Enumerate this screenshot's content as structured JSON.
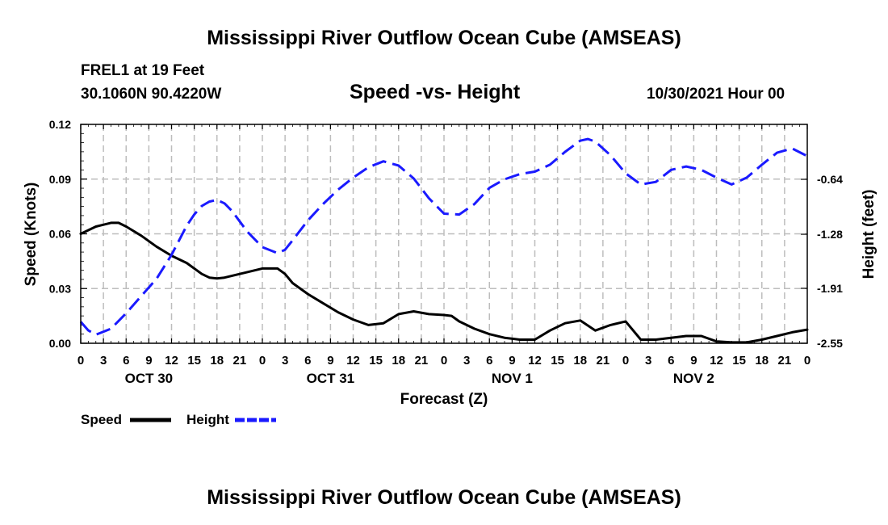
{
  "header": {
    "title": "Mississippi River Outflow Ocean Cube (AMSEAS)",
    "station": "FREL1 at 19 Feet",
    "coords": "30.1060N  90.4220W",
    "subtitle": "Speed -vs- Height",
    "datetime": "10/30/2021 Hour 00"
  },
  "footer": {
    "title": "Mississippi River Outflow Ocean Cube (AMSEAS)"
  },
  "colors": {
    "speed": "#000000",
    "height": "#1a1aff",
    "grid": "#bdbdbd"
  },
  "chart_data": {
    "type": "line",
    "title": "Speed -vs- Height",
    "xlabel": "Forecast (Z)",
    "ylabel": "Speed (Knots)",
    "y2label": "Height (feet)",
    "xlim": [
      0,
      96
    ],
    "ylim": [
      0,
      0.12
    ],
    "y2lim": [
      -2.55,
      0.0
    ],
    "x_tick_labels": [
      "0",
      "3",
      "6",
      "9",
      "12",
      "15",
      "18",
      "21",
      "0",
      "3",
      "6",
      "9",
      "12",
      "15",
      "18",
      "21",
      "0",
      "3",
      "6",
      "9",
      "12",
      "15",
      "18",
      "21",
      "0",
      "3",
      "6",
      "9",
      "12",
      "15",
      "18",
      "21",
      "0"
    ],
    "y_ticks": [
      0.0,
      0.03,
      0.06,
      0.09,
      0.12
    ],
    "y_tick_labels": [
      "0.00",
      "0.03",
      "0.06",
      "0.09",
      "0.12"
    ],
    "y2_ticks": [
      -2.55,
      -1.91,
      -1.28,
      -0.64
    ],
    "y2_tick_labels": [
      "-2.55",
      "-1.91",
      "-1.28",
      "-0.64"
    ],
    "date_labels": [
      {
        "label": "OCT 30",
        "x": 9
      },
      {
        "label": "OCT 31",
        "x": 33
      },
      {
        "label": "NOV 1",
        "x": 57
      },
      {
        "label": "NOV 2",
        "x": 81
      }
    ],
    "legend": [
      {
        "name": "Speed",
        "style": "solid"
      },
      {
        "name": "Height",
        "style": "dashed"
      }
    ],
    "series": [
      {
        "name": "Speed",
        "axis": "left",
        "style": "solid",
        "x": [
          0,
          2,
          4,
          5,
          6,
          8,
          10,
          12,
          14,
          16,
          17,
          18,
          19,
          20,
          22,
          24,
          26,
          27,
          28,
          30,
          32,
          34,
          36,
          38,
          40,
          42,
          44,
          46,
          48,
          49,
          50,
          52,
          54,
          56,
          58,
          60,
          62,
          64,
          66,
          68,
          70,
          72,
          74,
          76,
          77,
          78,
          80,
          82,
          84,
          86,
          88,
          90,
          92,
          94,
          96
        ],
        "values": [
          0.06,
          0.064,
          0.066,
          0.066,
          0.064,
          0.059,
          0.053,
          0.048,
          0.044,
          0.038,
          0.036,
          0.0355,
          0.036,
          0.037,
          0.039,
          0.041,
          0.041,
          0.038,
          0.033,
          0.027,
          0.022,
          0.017,
          0.013,
          0.01,
          0.011,
          0.016,
          0.0175,
          0.016,
          0.0155,
          0.015,
          0.012,
          0.008,
          0.005,
          0.003,
          0.002,
          0.002,
          0.007,
          0.011,
          0.0125,
          0.007,
          0.01,
          0.012,
          0.002,
          0.002,
          0.0025,
          0.003,
          0.004,
          0.004,
          0.001,
          0.0005,
          0.0005,
          0.002,
          0.004,
          0.006,
          0.0075
        ]
      },
      {
        "name": "Height",
        "axis": "right",
        "style": "dashed",
        "x": [
          0,
          1,
          2,
          4,
          6,
          8,
          10,
          12,
          14,
          15,
          16,
          17,
          18,
          19,
          20,
          22,
          24,
          26,
          27,
          28,
          30,
          32,
          34,
          36,
          38,
          40,
          42,
          44,
          46,
          48,
          50,
          52,
          54,
          56,
          58,
          60,
          62,
          64,
          66,
          67,
          68,
          70,
          72,
          74,
          76,
          78,
          80,
          82,
          84,
          86,
          88,
          90,
          92,
          94,
          96
        ],
        "values": [
          -2.3,
          -2.4,
          -2.45,
          -2.38,
          -2.2,
          -2.0,
          -1.8,
          -1.52,
          -1.18,
          -1.05,
          -0.95,
          -0.9,
          -0.88,
          -0.92,
          -1.01,
          -1.25,
          -1.43,
          -1.5,
          -1.46,
          -1.35,
          -1.12,
          -0.93,
          -0.76,
          -0.62,
          -0.5,
          -0.43,
          -0.48,
          -0.63,
          -0.86,
          -1.04,
          -1.05,
          -0.93,
          -0.74,
          -0.64,
          -0.58,
          -0.55,
          -0.47,
          -0.32,
          -0.19,
          -0.17,
          -0.2,
          -0.36,
          -0.57,
          -0.7,
          -0.67,
          -0.53,
          -0.49,
          -0.53,
          -0.62,
          -0.7,
          -0.62,
          -0.47,
          -0.33,
          -0.28,
          -0.37
        ]
      }
    ]
  }
}
